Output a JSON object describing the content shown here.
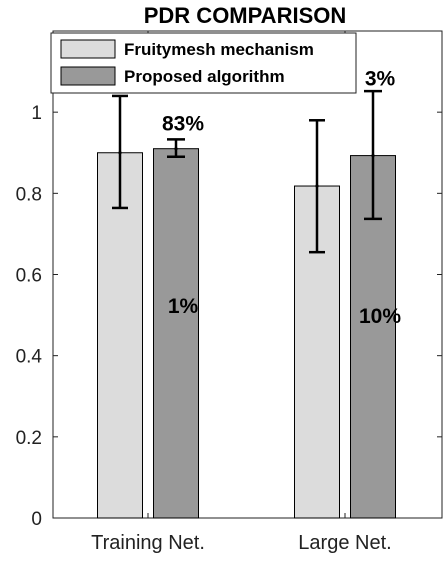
{
  "chart_data": {
    "type": "bar",
    "title": "PDR COMPARISON",
    "xlabel": "",
    "ylabel": "",
    "categories": [
      "Training Net.",
      "Large Net."
    ],
    "ylim": [
      0,
      1.2
    ],
    "yticks": [
      0,
      0.2,
      0.4,
      0.6,
      0.8,
      1
    ],
    "ytick_labels": [
      "0",
      "0.2",
      "0.4",
      "0.6",
      "0.8",
      "1"
    ],
    "grid": false,
    "legend_position": "top-left",
    "series": [
      {
        "name": "Fruitymesh mechanism",
        "color": "#dcdcdc",
        "values": [
          0.9,
          0.818
        ],
        "error_low": [
          0.764,
          0.655
        ],
        "error_high": [
          1.04,
          0.98
        ]
      },
      {
        "name": "Proposed algorithm",
        "color": "#999999",
        "values": [
          0.91,
          0.893
        ],
        "error_low": [
          0.89,
          0.737
        ],
        "error_high": [
          0.933,
          1.052
        ]
      }
    ],
    "annotations": [
      {
        "text": "83%",
        "category": 0,
        "series": 1,
        "y": 0.975
      },
      {
        "text": "1%",
        "category": 0,
        "series": 1,
        "y": 0.525
      },
      {
        "text": "3%",
        "category": 1,
        "series": 1,
        "y": 1.085
      },
      {
        "text": "10%",
        "category": 1,
        "series": 1,
        "y": 0.5
      }
    ]
  }
}
